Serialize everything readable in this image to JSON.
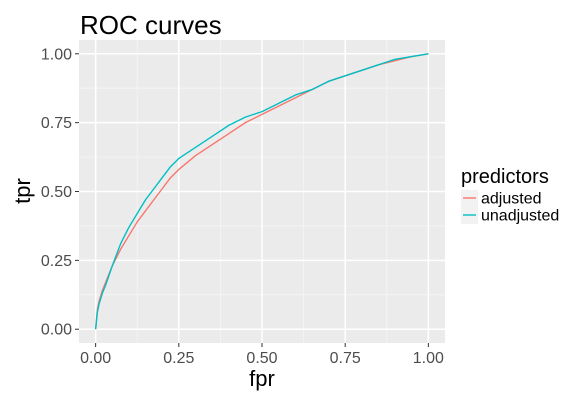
{
  "chart_data": {
    "type": "line",
    "title": "ROC curves",
    "xlabel": "fpr",
    "ylabel": "tpr",
    "xlim": [
      -0.05,
      1.05
    ],
    "ylim": [
      -0.05,
      1.05
    ],
    "x_ticks": [
      0.0,
      0.25,
      0.5,
      0.75,
      1.0
    ],
    "x_tick_labels": [
      "0.00",
      "0.25",
      "0.50",
      "0.75",
      "1.00"
    ],
    "y_ticks": [
      0.0,
      0.25,
      0.5,
      0.75,
      1.0
    ],
    "y_tick_labels": [
      "0.00",
      "0.25",
      "0.50",
      "0.75",
      "1.00"
    ],
    "grid": true,
    "panel_background": "#ebebeb",
    "legend": {
      "title": "predictors",
      "placement": "right"
    },
    "series": [
      {
        "name": "adjusted",
        "color": "#F8766D",
        "x": [
          0,
          0.005,
          0.01,
          0.02,
          0.03,
          0.05,
          0.075,
          0.1,
          0.125,
          0.15,
          0.175,
          0.2,
          0.225,
          0.25,
          0.3,
          0.35,
          0.4,
          0.45,
          0.5,
          0.55,
          0.6,
          0.65,
          0.7,
          0.75,
          0.8,
          0.85,
          0.9,
          0.95,
          1.0
        ],
        "y": [
          0,
          0.07,
          0.1,
          0.14,
          0.17,
          0.23,
          0.29,
          0.34,
          0.39,
          0.43,
          0.47,
          0.51,
          0.55,
          0.58,
          0.63,
          0.67,
          0.71,
          0.75,
          0.78,
          0.81,
          0.84,
          0.87,
          0.9,
          0.92,
          0.94,
          0.96,
          0.975,
          0.99,
          1.0
        ]
      },
      {
        "name": "unadjusted",
        "color": "#00BFC4",
        "x": [
          0,
          0.005,
          0.01,
          0.02,
          0.03,
          0.05,
          0.075,
          0.1,
          0.125,
          0.15,
          0.175,
          0.2,
          0.225,
          0.25,
          0.3,
          0.35,
          0.4,
          0.45,
          0.5,
          0.55,
          0.6,
          0.65,
          0.7,
          0.75,
          0.8,
          0.85,
          0.9,
          0.95,
          1.0
        ],
        "y": [
          0,
          0.06,
          0.09,
          0.13,
          0.16,
          0.23,
          0.31,
          0.37,
          0.42,
          0.47,
          0.51,
          0.55,
          0.59,
          0.62,
          0.66,
          0.7,
          0.74,
          0.77,
          0.79,
          0.82,
          0.85,
          0.87,
          0.9,
          0.92,
          0.94,
          0.96,
          0.98,
          0.99,
          1.0
        ]
      }
    ]
  }
}
